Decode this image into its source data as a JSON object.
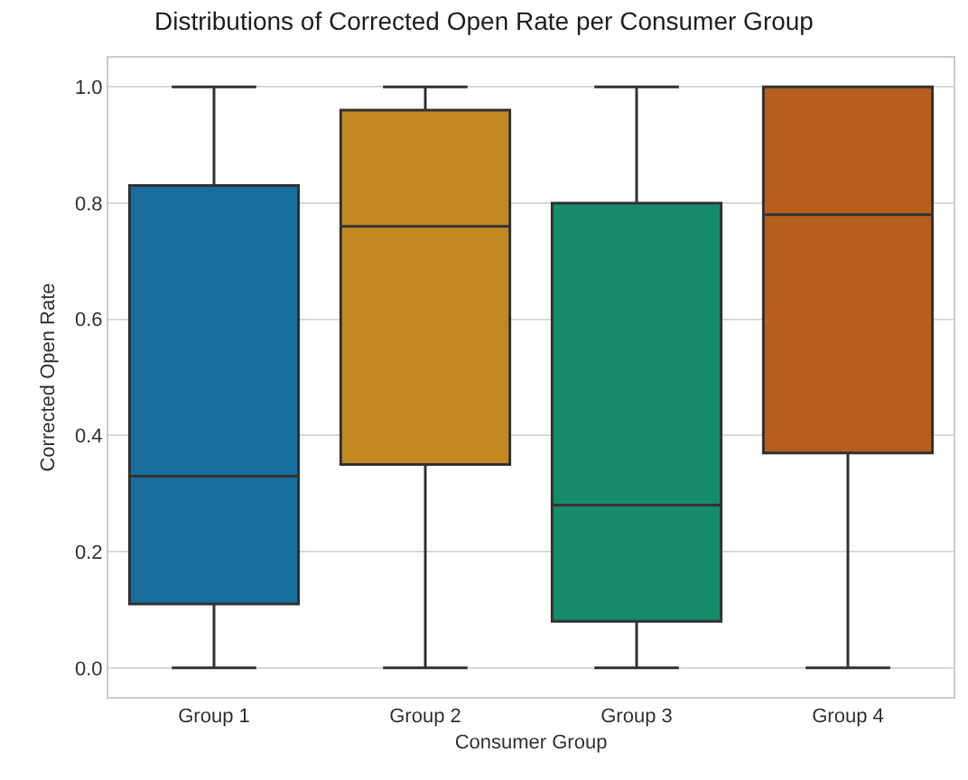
{
  "chart_data": {
    "type": "box",
    "title": "Distributions of Corrected Open Rate per Consumer Group",
    "xlabel": "Consumer Group",
    "ylabel": "Corrected Open Rate",
    "categories": [
      "Group 1",
      "Group 2",
      "Group 3",
      "Group 4"
    ],
    "colors": [
      "#176d9c",
      "#c38820",
      "#168b6a",
      "#b75f1f"
    ],
    "boxes": [
      {
        "low": 0,
        "q1": 0.11,
        "median": 0.33,
        "q3": 0.83,
        "high": 1
      },
      {
        "low": 0,
        "q1": 0.35,
        "median": 0.76,
        "q3": 0.96,
        "high": 1
      },
      {
        "low": 0,
        "q1": 0.08,
        "median": 0.28,
        "q3": 0.8,
        "high": 1
      },
      {
        "low": 0,
        "q1": 0.37,
        "median": 0.78,
        "q3": 1,
        "high": 1
      }
    ],
    "ylim": [
      -0.05,
      1.05
    ],
    "yticks": [
      {
        "value": 0,
        "label": "0.0"
      },
      0.2,
      0.4,
      0.6,
      0.8,
      {
        "value": 1,
        "label": "1.0"
      }
    ],
    "grid": "y"
  }
}
